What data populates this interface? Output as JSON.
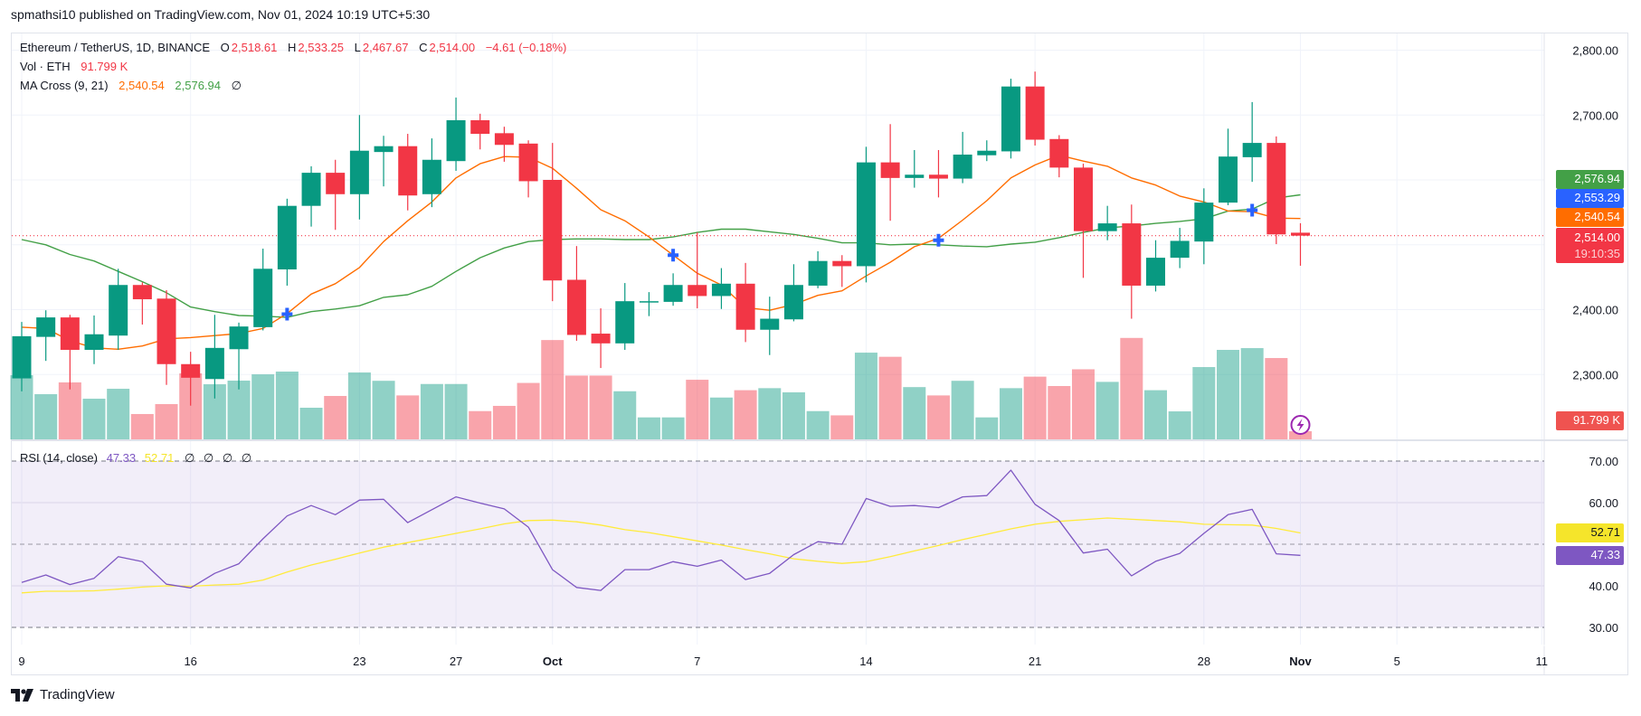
{
  "header": {
    "published": "spmathsi10 published on TradingView.com, Nov 01, 2024 10:19 UTC+5:30"
  },
  "legend": {
    "symbol": "Ethereum / TetherUS, 1D, BINANCE",
    "o_label": "O",
    "open": "2,518.61",
    "h_label": "H",
    "high": "2,533.25",
    "l_label": "L",
    "low": "2,467.67",
    "c_label": "C",
    "close": "2,514.00",
    "change": "−4.61 (−0.18%)",
    "vol_label": "Vol · ETH",
    "vol_value": "91.799 K",
    "ma_label": "MA Cross (9, 21)",
    "ma_fast": "2,540.54",
    "ma_slow": "2,576.94",
    "ma_extra": "∅",
    "rsi_label": "RSI (14, close)",
    "rsi_value": "47.33",
    "rsi_ma_value": "52.71",
    "rsi_extra": [
      "∅",
      "∅",
      "∅",
      "∅"
    ]
  },
  "axis_labels": {
    "ma_slow": {
      "text": "2,576.94",
      "color": "#43a047"
    },
    "cross": {
      "text": "2,553.29",
      "color": "#2962ff"
    },
    "ma_fast": {
      "text": "2,540.54",
      "color": "#ff6d00"
    },
    "last_price": {
      "text": "2,514.00",
      "countdown": "19:10:35",
      "color": "#f23645"
    },
    "volume": {
      "text": "91.799 K",
      "color": "#ef5350"
    },
    "rsi_ma": {
      "text": "52.71",
      "color": "#f5e52b"
    },
    "rsi": {
      "text": "47.33",
      "color": "#7e57c2"
    }
  },
  "footer": {
    "brand": "TradingView"
  },
  "colors": {
    "up": "#089981",
    "down": "#f23645",
    "ma_fast": "#ff6d00",
    "ma_slow": "#43a047",
    "cross": "#2962ff",
    "rsi": "#7e57c2",
    "rsi_ma": "#ffeb3b",
    "alert": "#9c27b0"
  },
  "chart_data": {
    "type": "candlestick",
    "symbol": "Ethereum / TetherUS",
    "interval": "1D",
    "price_axis": {
      "range": [
        2260,
        2830
      ],
      "ticks": [
        {
          "value": 2800,
          "label": "2,800.00"
        },
        {
          "value": 2700,
          "label": "2,700.00"
        },
        {
          "value": 2400,
          "label": "2,400.00"
        },
        {
          "value": 2300,
          "label": "2,300.00"
        }
      ],
      "grid": [
        2300,
        2400,
        2500,
        2600,
        2700,
        2800
      ]
    },
    "rsi_axis": {
      "range": [
        30,
        70
      ],
      "ticks": [
        {
          "value": 70,
          "label": "70.00"
        },
        {
          "value": 60,
          "label": "60.00"
        },
        {
          "value": 40,
          "label": "40.00"
        },
        {
          "value": 30,
          "label": "30.00"
        }
      ],
      "bands": [
        70,
        50,
        30
      ]
    },
    "x_ticks": [
      {
        "date": "2024-09-09",
        "label": "9"
      },
      {
        "date": "2024-09-16",
        "label": "16"
      },
      {
        "date": "2024-09-23",
        "label": "23"
      },
      {
        "date": "2024-09-27",
        "label": "27"
      },
      {
        "date": "2024-10-01",
        "label": "Oct",
        "month": true
      },
      {
        "date": "2024-10-07",
        "label": "7"
      },
      {
        "date": "2024-10-14",
        "label": "14"
      },
      {
        "date": "2024-10-21",
        "label": "21"
      },
      {
        "date": "2024-10-28",
        "label": "28"
      },
      {
        "date": "2024-11-01",
        "label": "Nov",
        "month": true
      },
      {
        "date": "2024-11-05",
        "label": "5"
      },
      {
        "date": "2024-11-11",
        "label": "11"
      }
    ],
    "dates": [
      "2024-09-09",
      "2024-09-10",
      "2024-09-11",
      "2024-09-12",
      "2024-09-13",
      "2024-09-14",
      "2024-09-15",
      "2024-09-16",
      "2024-09-17",
      "2024-09-18",
      "2024-09-19",
      "2024-09-20",
      "2024-09-21",
      "2024-09-22",
      "2024-09-23",
      "2024-09-24",
      "2024-09-25",
      "2024-09-26",
      "2024-09-27",
      "2024-09-28",
      "2024-09-29",
      "2024-09-30",
      "2024-10-01",
      "2024-10-02",
      "2024-10-03",
      "2024-10-04",
      "2024-10-05",
      "2024-10-06",
      "2024-10-07",
      "2024-10-08",
      "2024-10-09",
      "2024-10-10",
      "2024-10-11",
      "2024-10-12",
      "2024-10-13",
      "2024-10-14",
      "2024-10-15",
      "2024-10-16",
      "2024-10-17",
      "2024-10-18",
      "2024-10-19",
      "2024-10-20",
      "2024-10-21",
      "2024-10-22",
      "2024-10-23",
      "2024-10-24",
      "2024-10-25",
      "2024-10-26",
      "2024-10-27",
      "2024-10-28",
      "2024-10-29",
      "2024-10-30",
      "2024-10-31",
      "2024-11-01"
    ],
    "open": [
      2294,
      2358,
      2388,
      2338,
      2360,
      2438,
      2417,
      2316,
      2293,
      2339,
      2373,
      2462,
      2560,
      2611,
      2578,
      2643,
      2652,
      2578,
      2629,
      2692,
      2672,
      2656,
      2600,
      2446,
      2363,
      2348,
      2412,
      2412,
      2438,
      2421,
      2440,
      2369,
      2385,
      2437,
      2475,
      2467,
      2627,
      2603,
      2608,
      2602,
      2638,
      2644,
      2744,
      2663,
      2619,
      2521,
      2533,
      2437,
      2480,
      2505,
      2565,
      2635,
      2657,
      2518.61
    ],
    "high": [
      2381,
      2399,
      2392,
      2391,
      2463,
      2442,
      2430,
      2335,
      2392,
      2380,
      2494,
      2571,
      2621,
      2631,
      2700,
      2668,
      2671,
      2664,
      2727,
      2702,
      2682,
      2661,
      2657,
      2498,
      2402,
      2441,
      2427,
      2456,
      2519,
      2464,
      2472,
      2420,
      2470,
      2490,
      2484,
      2651,
      2686,
      2646,
      2646,
      2674,
      2661,
      2756,
      2767,
      2669,
      2625,
      2560,
      2562,
      2507,
      2526,
      2587,
      2679,
      2720,
      2667,
      2533.25
    ],
    "low": [
      2274,
      2321,
      2277,
      2316,
      2338,
      2377,
      2284,
      2252,
      2263,
      2277,
      2368,
      2437,
      2528,
      2523,
      2539,
      2590,
      2553,
      2558,
      2614,
      2647,
      2628,
      2573,
      2413,
      2352,
      2310,
      2338,
      2390,
      2406,
      2402,
      2401,
      2350,
      2330,
      2382,
      2433,
      2435,
      2442,
      2537,
      2588,
      2573,
      2595,
      2629,
      2633,
      2653,
      2604,
      2449,
      2507,
      2386,
      2428,
      2464,
      2470,
      2561,
      2597,
      2501,
      2467.67
    ],
    "close": [
      2359,
      2388,
      2338,
      2362,
      2438,
      2416,
      2316,
      2295,
      2341,
      2374,
      2463,
      2560,
      2611,
      2578,
      2645,
      2652,
      2576,
      2631,
      2692,
      2671,
      2654,
      2598,
      2445,
      2361,
      2348,
      2413,
      2413,
      2438,
      2421,
      2440,
      2369,
      2386,
      2438,
      2475,
      2467,
      2627,
      2603,
      2608,
      2602,
      2639,
      2645,
      2744,
      2662,
      2619,
      2521,
      2533,
      2437,
      2480,
      2506,
      2565,
      2636,
      2657,
      2516,
      2514.0
    ],
    "volume_k": [
      724,
      510,
      643,
      459,
      571,
      286,
      398,
      745,
      622,
      663,
      734,
      765,
      357,
      490,
      755,
      661,
      496,
      625,
      625,
      319,
      378,
      637,
      1121,
      720,
      720,
      543,
      248,
      248,
      673,
      472,
      555,
      578,
      531,
      319,
      271,
      979,
      932,
      590,
      496,
      661,
      248,
      578,
      708,
      602,
      791,
      649,
      1145,
      555,
      316,
      816,
      1010,
      1030,
      918,
      91.799
    ],
    "ma_fast": [
      2373,
      2371,
      2352,
      2341,
      2339,
      2344,
      2355,
      2357,
      2360,
      2363,
      2371,
      2394,
      2424,
      2440,
      2465,
      2505,
      2537,
      2566,
      2603,
      2625,
      2636,
      2635,
      2618,
      2587,
      2554,
      2537,
      2512,
      2484,
      2456,
      2438,
      2403,
      2399,
      2408,
      2422,
      2429,
      2452,
      2473,
      2497,
      2510,
      2538,
      2568,
      2603,
      2623,
      2638,
      2629,
      2621,
      2603,
      2592,
      2575,
      2566,
      2552,
      2551,
      2541,
      2540.54
    ],
    "ma_slow": [
      2508,
      2500,
      2485,
      2475,
      2459,
      2443,
      2426,
      2404,
      2397,
      2391,
      2390,
      2388,
      2397,
      2401,
      2406,
      2419,
      2423,
      2436,
      2459,
      2480,
      2495,
      2505,
      2508,
      2509,
      2509,
      2508,
      2508,
      2512,
      2519,
      2524,
      2524,
      2520,
      2516,
      2510,
      2503,
      2503,
      2500,
      2501,
      2500,
      2498,
      2497,
      2501,
      2504,
      2511,
      2519,
      2526,
      2529,
      2533,
      2536,
      2540,
      2552,
      2555,
      2572,
      2576.94
    ],
    "crosses": [
      {
        "date": "2024-09-20",
        "price": 2393
      },
      {
        "date": "2024-10-06",
        "price": 2484
      },
      {
        "date": "2024-10-17",
        "price": 2507
      },
      {
        "date": "2024-10-30",
        "price": 2553.29
      }
    ],
    "rsi": [
      40.8,
      42.6,
      40.3,
      41.8,
      47.0,
      45.8,
      40.4,
      39.5,
      43.0,
      45.3,
      51.3,
      56.8,
      59.3,
      57.1,
      60.6,
      60.8,
      55.2,
      58.3,
      61.4,
      59.9,
      58.5,
      54.1,
      43.9,
      39.6,
      38.9,
      43.9,
      43.9,
      45.8,
      44.7,
      46.2,
      41.5,
      43.0,
      47.5,
      50.6,
      50.0,
      61.0,
      59.1,
      59.3,
      58.8,
      61.4,
      61.7,
      67.8,
      59.6,
      55.7,
      47.9,
      48.8,
      42.4,
      45.9,
      47.8,
      52.6,
      57.1,
      58.4,
      47.7,
      47.33
    ],
    "rsi_ma": [
      38.3,
      38.7,
      38.7,
      38.8,
      39.2,
      39.7,
      40.0,
      39.9,
      40.2,
      40.4,
      41.4,
      43.3,
      45.0,
      46.4,
      47.9,
      49.3,
      50.4,
      51.5,
      52.6,
      53.7,
      54.9,
      55.7,
      55.8,
      55.4,
      54.6,
      53.5,
      52.8,
      51.8,
      50.8,
      49.8,
      48.7,
      47.7,
      46.5,
      45.9,
      45.4,
      45.8,
      47.0,
      48.4,
      49.7,
      51.1,
      52.4,
      53.7,
      54.8,
      55.5,
      55.9,
      56.3,
      56.0,
      55.7,
      55.4,
      54.8,
      54.7,
      54.6,
      53.8,
      52.71
    ],
    "last_price": 2514.0
  }
}
